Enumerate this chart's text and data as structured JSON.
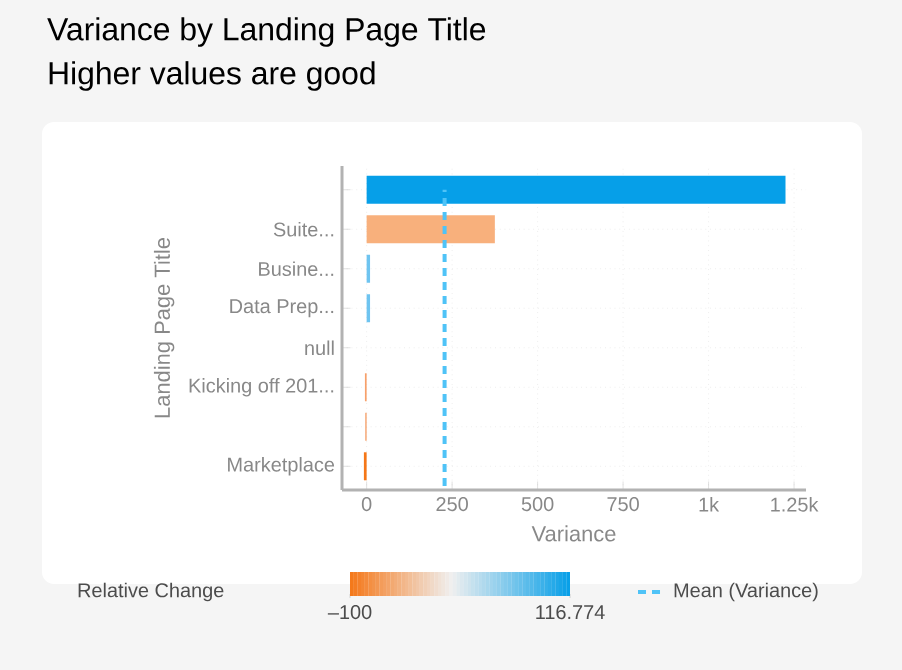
{
  "chart_data": {
    "type": "bar",
    "orientation": "horizontal",
    "title": "Variance by Landing Page Title",
    "subtitle": "Higher values are good",
    "xlabel": "Variance",
    "ylabel": "Landing Page Title",
    "categories": [
      null,
      "Suite...",
      "Busine...",
      "Data Prep...",
      "null",
      "Kicking off 201...",
      null,
      "Marketplace"
    ],
    "values": [
      1225,
      375,
      10,
      10,
      null,
      -5,
      -4,
      -8
    ],
    "colors": [
      "#069fe8",
      "#f8b07c",
      "#6ec4f0",
      "#6ec4f0",
      "#cccccc",
      "#f7a06a",
      "#f5a06a",
      "#f57718"
    ],
    "xlim": [
      -72,
      1285
    ],
    "xticks": [
      0,
      250,
      500,
      750,
      {
        "value": 1000,
        "label": "1k"
      },
      {
        "value": 1250,
        "label": "1.25k"
      }
    ],
    "grid": true,
    "legend": "bottom",
    "clabel": "Relative Change",
    "clim": [
      -100,
      116.774
    ],
    "cticks": [
      {
        "value": -100,
        "label": "–100"
      },
      116.774
    ],
    "ref_lines": [
      {
        "axis": "x",
        "value": 228,
        "label": "Mean (Variance)",
        "color": "#4fc3f7",
        "line_style": "dashed"
      }
    ]
  }
}
